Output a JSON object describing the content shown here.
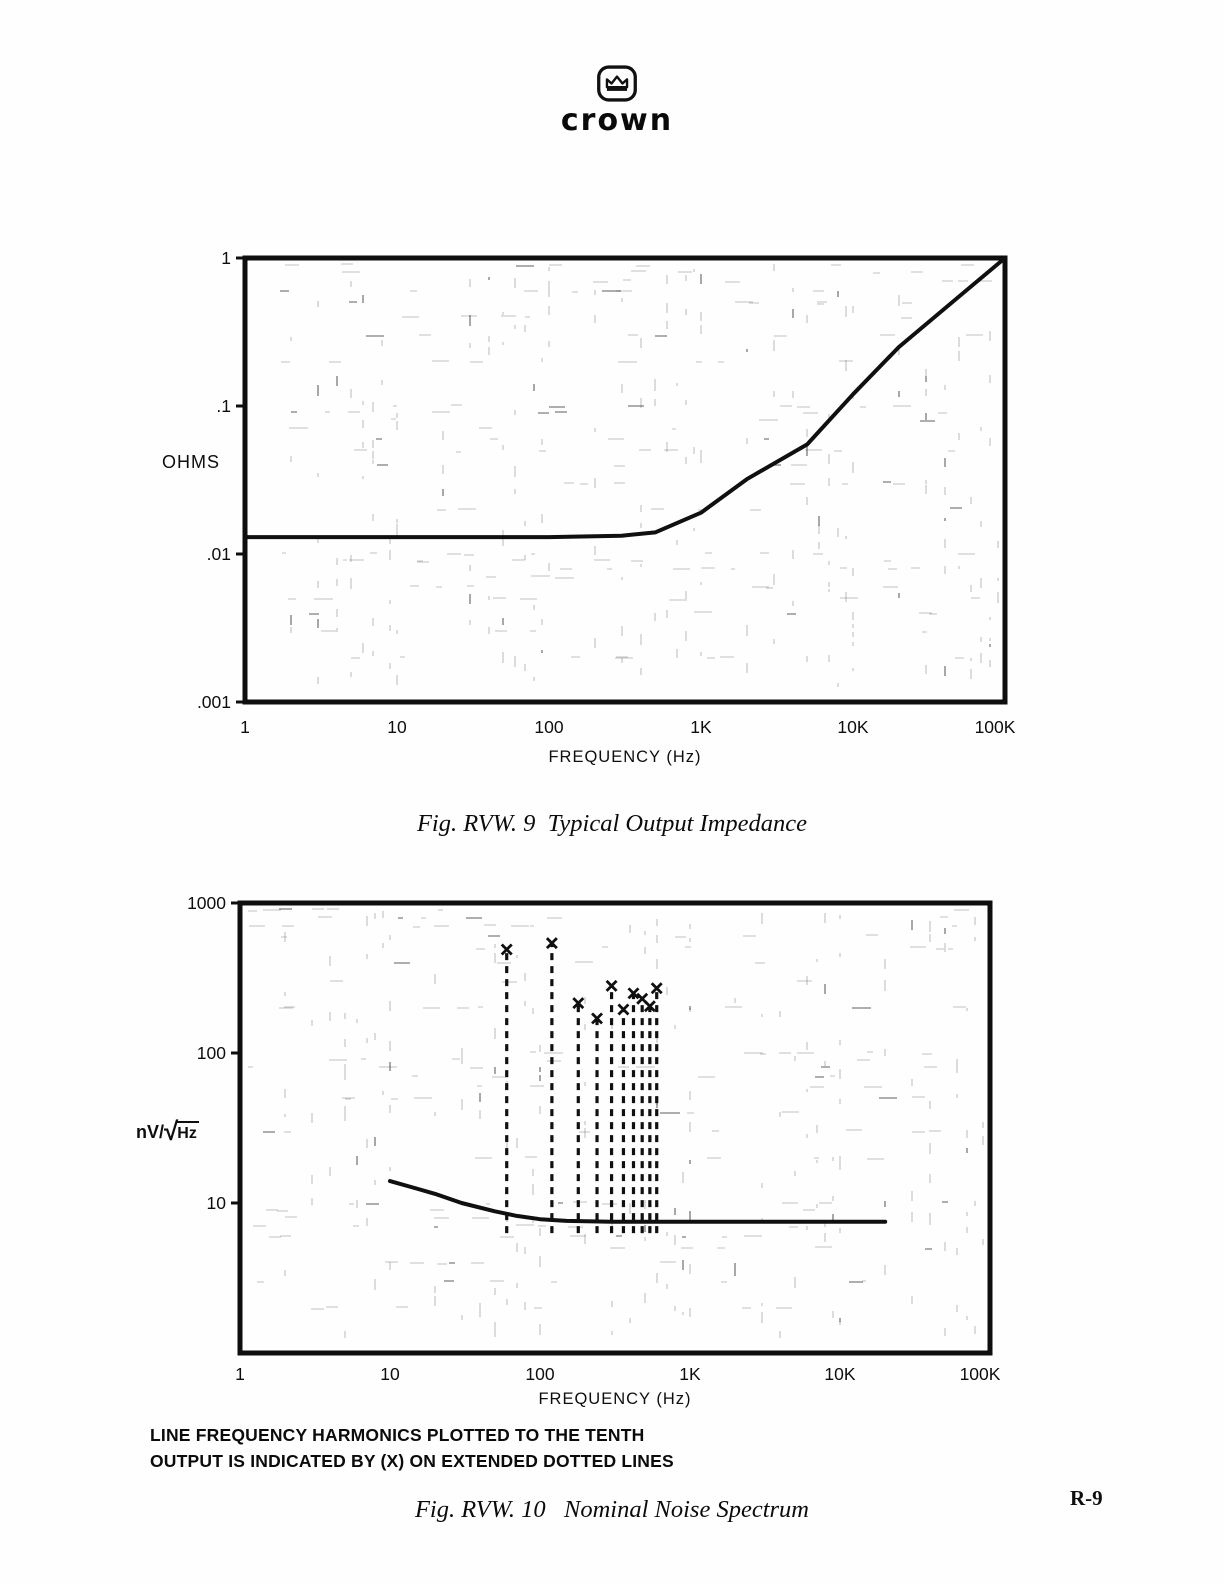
{
  "page": {
    "number_label": "R-9"
  },
  "logo": {
    "wordmark": "crown",
    "icon": "crown-icon"
  },
  "figures": [
    {
      "caption": "Fig. RVW. 9  Typical Output Impedance",
      "y_axis_label": "OHMS",
      "x_axis_label": "FREQUENCY (Hz)"
    },
    {
      "caption": "Fig. RVW. 10   Nominal Noise Spectrum",
      "y_axis_label_prefix": "nV/",
      "y_axis_sqrt_symbol": "√",
      "y_axis_label_radicand": "Hz",
      "x_axis_label": "FREQUENCY (Hz)"
    }
  ],
  "note": {
    "line1": "LINE FREQUENCY HARMONICS PLOTTED TO THE TENTH",
    "line2": "OUTPUT IS INDICATED BY (X) ON EXTENDED DOTTED LINES"
  },
  "chart_data": [
    {
      "type": "line",
      "title": "Fig. RVW. 9 Typical Output Impedance",
      "xlabel": "FREQUENCY (Hz)",
      "ylabel": "OHMS",
      "x_scale": "log",
      "y_scale": "log",
      "xlim": [
        1,
        100000
      ],
      "ylim": [
        0.001,
        1
      ],
      "grid": "faint dashed scan-grid",
      "legend": "none",
      "xticks": [
        {
          "v": 1,
          "label": "1"
        },
        {
          "v": 10,
          "label": "10"
        },
        {
          "v": 100,
          "label": "100"
        },
        {
          "v": 1000,
          "label": "1K"
        },
        {
          "v": 10000,
          "label": "10K"
        },
        {
          "v": 100000,
          "label": "100K"
        }
      ],
      "yticks": [
        {
          "v": 1,
          "label": "1"
        },
        {
          "v": 0.1,
          "label": ".1"
        },
        {
          "v": 0.01,
          "label": ".01"
        },
        {
          "v": 0.001,
          "label": ".001"
        }
      ],
      "series": [
        {
          "name": "typical output impedance",
          "x": [
            1,
            10,
            100,
            300,
            500,
            1000,
            2000,
            5000,
            10000,
            20000,
            50000,
            100000
          ],
          "y": [
            0.013,
            0.013,
            0.013,
            0.0133,
            0.014,
            0.019,
            0.032,
            0.055,
            0.12,
            0.25,
            0.55,
            1.0
          ]
        }
      ]
    },
    {
      "type": "line",
      "title": "Fig. RVW. 10 Nominal Noise Spectrum",
      "xlabel": "FREQUENCY (Hz)",
      "ylabel": "nV/√Hz",
      "x_scale": "log",
      "y_scale": "log",
      "xlim": [
        1,
        100000
      ],
      "ylim": [
        1,
        1000
      ],
      "grid": "faint dashed scan-grid",
      "legend": "none",
      "xticks": [
        {
          "v": 1,
          "label": "1"
        },
        {
          "v": 10,
          "label": "10"
        },
        {
          "v": 100,
          "label": "100"
        },
        {
          "v": 1000,
          "label": "1K"
        },
        {
          "v": 10000,
          "label": "10K"
        },
        {
          "v": 100000,
          "label": "100K"
        }
      ],
      "yticks": [
        {
          "v": 1000,
          "label": "1000"
        },
        {
          "v": 100,
          "label": "100"
        },
        {
          "v": 10,
          "label": "10"
        }
      ],
      "series": [
        {
          "name": "nominal noise floor",
          "x": [
            10,
            15,
            20,
            30,
            50,
            70,
            100,
            150,
            300,
            1000,
            5000,
            20000
          ],
          "y": [
            14,
            12.5,
            11.5,
            10,
            8.8,
            8.2,
            7.8,
            7.6,
            7.5,
            7.5,
            7.5,
            7.5
          ]
        }
      ],
      "harmonics": {
        "name": "line frequency harmonics plotted to the tenth, output marked by (x) on extended dotted lines",
        "marker": "x",
        "line_style": "dashed",
        "baseline": 6.3,
        "x": [
          60,
          120,
          180,
          240,
          300,
          360,
          420,
          480,
          540,
          600
        ],
        "y": [
          490,
          540,
          215,
          170,
          280,
          195,
          250,
          230,
          205,
          270
        ]
      }
    }
  ]
}
